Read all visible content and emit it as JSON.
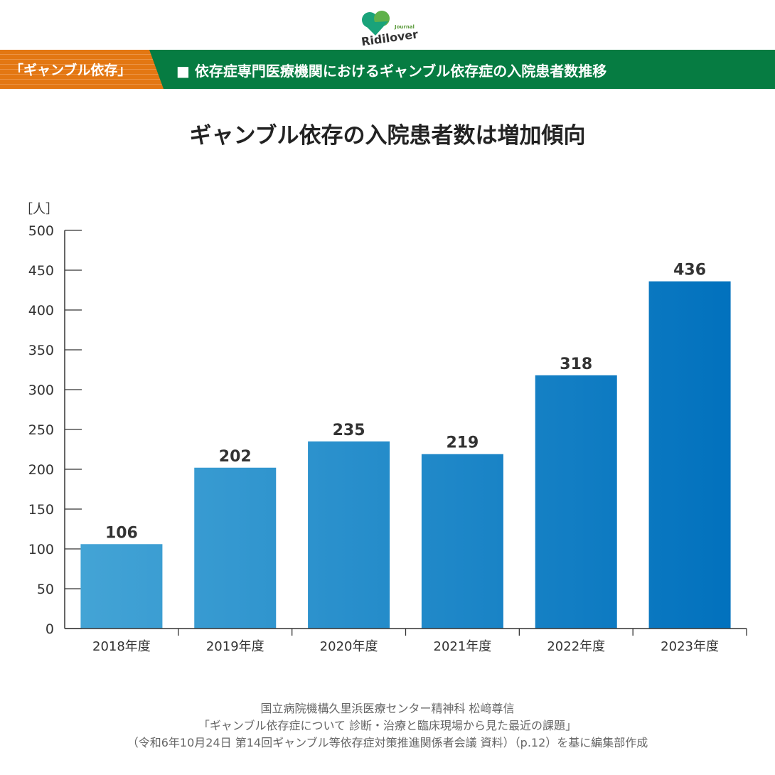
{
  "logo": {
    "text": "Ridilover",
    "sub": "Journal"
  },
  "banner": {
    "tag": "「ギャンブル依存」",
    "title": "■ 依存症専門医療機関におけるギャンブル依存症の入院患者数推移"
  },
  "heading": "ギャンブル依存の入院患者数は増加傾向",
  "source": [
    "国立病院機構久里浜医療センター精神科 松﨑尊信",
    "「ギャンブル依存症について 診断・治療と臨床現場から見た最近の課題」",
    "（令和6年10月24日 第14回ギャンブル等依存症対策推進関係者会議 資料）（p.12）を基に編集部作成"
  ],
  "chart_data": {
    "type": "bar",
    "title": "ギャンブル依存の入院患者数は増加傾向",
    "ylabel": "［人］",
    "xlabel": "",
    "categories": [
      "2018年度",
      "2019年度",
      "2020年度",
      "2021年度",
      "2022年度",
      "2023年度"
    ],
    "values": [
      106,
      202,
      235,
      219,
      318,
      436
    ],
    "ylim": [
      0,
      500
    ],
    "yticks": [
      0,
      50,
      100,
      150,
      200,
      250,
      300,
      350,
      400,
      450,
      500
    ],
    "grid": false,
    "colors": {
      "start": "#45a5d6",
      "end": "#0070bd"
    }
  }
}
